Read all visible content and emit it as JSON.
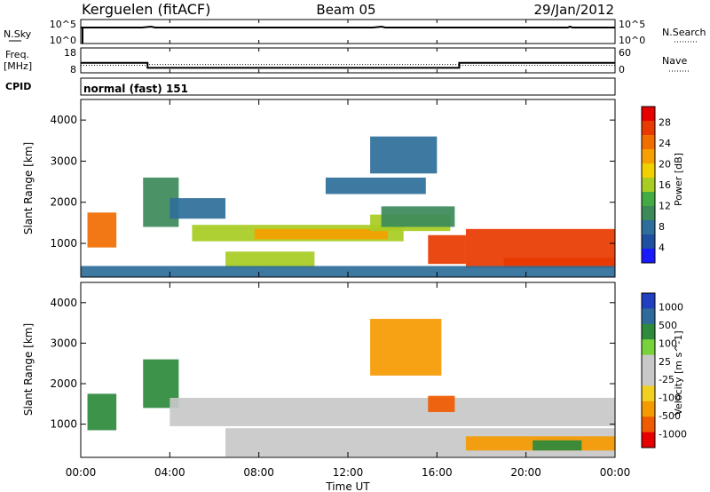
{
  "header": {
    "station": "Kerguelen (fitACF)",
    "beam": "Beam 05",
    "date": "29/Jan/2012"
  },
  "top_panels": {
    "nsky_label": "N.Sky",
    "nsearch_label": "N.Search",
    "nsky_ticks": [
      "10^5",
      "10^0"
    ],
    "nsearch_ticks": [
      "10^5",
      "10^0"
    ],
    "freq_label_1": "Freq.",
    "freq_label_2": "[MHz]",
    "freq_ticks": [
      "18",
      "8"
    ],
    "nave_label": "Nave",
    "nave_ticks": [
      "60",
      "0"
    ],
    "cpid_label": "CPID",
    "cpid_value": "normal (fast) 151"
  },
  "colors": {
    "power_scale": [
      "#1a1aff",
      "#1f4fa0",
      "#2e6e9a",
      "#3c8a5a",
      "#44aa44",
      "#a8cc22",
      "#f0d000",
      "#f5a000",
      "#f06d00",
      "#e83a00",
      "#e60000"
    ],
    "velocity_scale": [
      "#e60000",
      "#f05a00",
      "#f59a00",
      "#f2d020",
      "#c8c8c8",
      "#c8c8c8",
      "#78d23c",
      "#2e8a3c",
      "#2e6a9a",
      "#2040c0"
    ],
    "background_blue": "#1a3aa0",
    "gray": "#c8c8c8"
  },
  "chart_data": [
    {
      "type": "heatmap",
      "name": "power",
      "ylabel": "Slant Range [km]",
      "y_ticks": [
        "4000",
        "3000",
        "2000",
        "1000"
      ],
      "ylim": [
        180,
        4500
      ],
      "colorbar_label": "Power [dB]",
      "colorbar_ticks": [
        "28",
        "24",
        "20",
        "16",
        "12",
        "8",
        "4"
      ],
      "colorbar_range": [
        0,
        30
      ],
      "regions": [
        {
          "x": [
            0.3,
            1.6
          ],
          "y": [
            900,
            1750
          ],
          "level": 24
        },
        {
          "x": [
            2.8,
            4.4
          ],
          "y": [
            1400,
            2600
          ],
          "level": 8
        },
        {
          "x": [
            4.0,
            6.5
          ],
          "y": [
            1600,
            2100
          ],
          "level": 6
        },
        {
          "x": [
            5.0,
            14.5
          ],
          "y": [
            1050,
            1450
          ],
          "level": 14
        },
        {
          "x": [
            7.8,
            13.8
          ],
          "y": [
            1100,
            1350
          ],
          "level": 22
        },
        {
          "x": [
            13.0,
            16.6
          ],
          "y": [
            1300,
            1700
          ],
          "level": 16
        },
        {
          "x": [
            13.5,
            16.8
          ],
          "y": [
            1400,
            1900
          ],
          "level": 8
        },
        {
          "x": [
            6.5,
            10.5
          ],
          "y": [
            400,
            800
          ],
          "level": 16
        },
        {
          "x": [
            13.0,
            16.0
          ],
          "y": [
            2700,
            3600
          ],
          "level": 6
        },
        {
          "x": [
            11.0,
            15.5
          ],
          "y": [
            2200,
            2600
          ],
          "level": 6
        },
        {
          "x": [
            15.6,
            17.3
          ],
          "y": [
            500,
            1200
          ],
          "level": 26
        },
        {
          "x": [
            17.3,
            24.0
          ],
          "y": [
            400,
            1350
          ],
          "level": 26
        },
        {
          "x": [
            19.0,
            24.0
          ],
          "y": [
            400,
            650
          ],
          "level": 28
        },
        {
          "x": [
            0.0,
            24.0
          ],
          "y": [
            180,
            450
          ],
          "level": 6
        }
      ]
    },
    {
      "type": "heatmap",
      "name": "velocity",
      "ylabel": "Slant Range [km]",
      "y_ticks": [
        "4000",
        "3000",
        "2000",
        "1000"
      ],
      "ylim": [
        180,
        4500
      ],
      "colorbar_label": "Velocity [m s^-1]",
      "colorbar_ticks": [
        "1000",
        "500",
        "100",
        "25",
        "-25",
        "-100",
        "-500",
        "-1000"
      ],
      "colorbar_range": [
        -1000,
        1000
      ],
      "regions": [
        {
          "x": [
            0.3,
            1.6
          ],
          "y": [
            850,
            1750
          ],
          "level": 150
        },
        {
          "x": [
            2.8,
            4.4
          ],
          "y": [
            1400,
            2600
          ],
          "level": 150
        },
        {
          "x": [
            4.0,
            24.0
          ],
          "y": [
            950,
            1650
          ],
          "level": 0
        },
        {
          "x": [
            6.5,
            24.0
          ],
          "y": [
            200,
            900
          ],
          "level": 0
        },
        {
          "x": [
            13.0,
            16.2
          ],
          "y": [
            2200,
            3600
          ],
          "level": -80
        },
        {
          "x": [
            15.6,
            16.8
          ],
          "y": [
            1300,
            1700
          ],
          "level": -300
        },
        {
          "x": [
            17.3,
            24.0
          ],
          "y": [
            350,
            700
          ],
          "level": -100
        },
        {
          "x": [
            20.3,
            22.5
          ],
          "y": [
            350,
            600
          ],
          "level": 150
        }
      ]
    }
  ],
  "x_axis": {
    "xlabel": "Time UT",
    "x_ticks": [
      "00:00",
      "04:00",
      "08:00",
      "12:00",
      "16:00",
      "20:00",
      "00:00"
    ],
    "xlim": [
      0,
      24
    ]
  },
  "freq_series": {
    "x": [
      0.0,
      3.0,
      3.0,
      17.0,
      17.0,
      24.0
    ],
    "y": [
      12,
      12,
      10,
      10,
      12,
      12
    ]
  },
  "nave_series": {
    "x": [
      0.0,
      3.0,
      3.0,
      17.0,
      17.0,
      24.0
    ],
    "y": [
      18,
      18,
      20,
      20,
      18,
      18
    ]
  }
}
